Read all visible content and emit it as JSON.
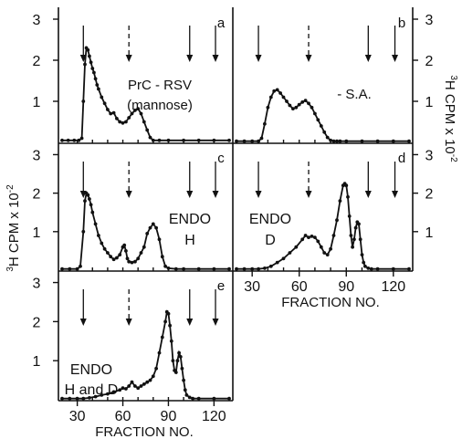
{
  "chart_data": [
    {
      "id": "a",
      "type": "line",
      "panel_letter": "a",
      "label": "PrC - RSV",
      "label2": "(mannose)",
      "xlim": [
        20,
        130
      ],
      "ylim": [
        0,
        3.2
      ],
      "yticks": [
        "1",
        "2",
        "3"
      ],
      "xticks": [],
      "marker_ticks": [
        30,
        40,
        50,
        60,
        70,
        80,
        90,
        100,
        110,
        120
      ],
      "arrows": [
        {
          "x": 34,
          "dashed": false
        },
        {
          "x": 64,
          "dashed": true
        },
        {
          "x": 104,
          "dashed": false
        },
        {
          "x": 121,
          "dashed": false
        }
      ],
      "x": [
        20,
        24,
        28,
        31,
        33,
        34,
        35,
        36,
        37,
        38,
        39,
        40,
        41,
        42,
        43,
        44,
        46,
        48,
        50,
        52,
        54,
        56,
        58,
        60,
        62,
        64,
        66,
        68,
        70,
        72,
        74,
        76,
        78,
        80,
        84,
        90,
        100,
        110,
        120,
        130
      ],
      "y": [
        0.05,
        0.05,
        0.05,
        0.05,
        0.1,
        1.0,
        1.9,
        2.3,
        2.25,
        2.1,
        1.95,
        1.8,
        1.7,
        1.55,
        1.4,
        1.3,
        1.1,
        0.95,
        0.8,
        0.7,
        0.72,
        0.58,
        0.5,
        0.47,
        0.5,
        0.6,
        0.7,
        0.78,
        0.82,
        0.7,
        0.5,
        0.3,
        0.12,
        0.05,
        0.05,
        0.05,
        0.05,
        0.05,
        0.05,
        0.05
      ]
    },
    {
      "id": "b",
      "type": "line",
      "panel_letter": "b",
      "label": "- S.A.",
      "label2": "",
      "xlim": [
        20,
        130
      ],
      "ylim": [
        0,
        3.2
      ],
      "yticks": [
        "1",
        "2",
        "3"
      ],
      "xticks": [],
      "marker_ticks": [
        30,
        40,
        50,
        60,
        70,
        80,
        90,
        100,
        110,
        120
      ],
      "arrows": [
        {
          "x": 34,
          "dashed": false
        },
        {
          "x": 66,
          "dashed": true
        },
        {
          "x": 104,
          "dashed": false
        },
        {
          "x": 121,
          "dashed": false
        }
      ],
      "x": [
        20,
        25,
        30,
        34,
        36,
        38,
        40,
        42,
        44,
        46,
        48,
        50,
        52,
        54,
        56,
        58,
        60,
        62,
        64,
        66,
        68,
        70,
        72,
        74,
        76,
        78,
        80,
        82,
        84,
        86,
        90,
        100,
        110,
        120,
        130
      ],
      "y": [
        0.03,
        0.03,
        0.03,
        0.03,
        0.1,
        0.45,
        0.85,
        1.1,
        1.25,
        1.28,
        1.2,
        1.1,
        1.0,
        0.9,
        0.82,
        0.85,
        0.92,
        0.98,
        1.02,
        0.95,
        0.85,
        0.7,
        0.55,
        0.4,
        0.25,
        0.12,
        0.05,
        0.03,
        0.03,
        0.03,
        0.03,
        0.03,
        0.03,
        0.03,
        0.03
      ]
    },
    {
      "id": "c",
      "type": "line",
      "panel_letter": "c",
      "label": "ENDO",
      "label2": "H",
      "xlim": [
        20,
        130
      ],
      "ylim": [
        0,
        3.2
      ],
      "yticks": [
        "1",
        "2",
        "3"
      ],
      "xticks": [],
      "marker_ticks": [
        30,
        40,
        50,
        60,
        70,
        80,
        90,
        100,
        110,
        120
      ],
      "arrows": [
        {
          "x": 34,
          "dashed": false
        },
        {
          "x": 64,
          "dashed": true
        },
        {
          "x": 104,
          "dashed": false
        },
        {
          "x": 121,
          "dashed": false
        }
      ],
      "x": [
        20,
        25,
        30,
        32,
        34,
        35,
        36,
        37,
        38,
        39,
        40,
        42,
        44,
        46,
        48,
        50,
        52,
        54,
        56,
        58,
        60,
        61,
        62,
        63,
        64,
        66,
        68,
        70,
        72,
        74,
        76,
        78,
        80,
        82,
        84,
        86,
        88,
        90,
        95,
        100,
        110,
        120,
        130
      ],
      "y": [
        0.03,
        0.03,
        0.03,
        0.1,
        1.0,
        1.8,
        2.0,
        1.95,
        1.85,
        1.7,
        1.5,
        1.2,
        0.9,
        0.7,
        0.55,
        0.45,
        0.35,
        0.28,
        0.32,
        0.4,
        0.6,
        0.65,
        0.5,
        0.3,
        0.22,
        0.2,
        0.22,
        0.3,
        0.45,
        0.6,
        0.95,
        1.1,
        1.2,
        1.1,
        0.8,
        0.35,
        0.1,
        0.05,
        0.03,
        0.03,
        0.03,
        0.03,
        0.03
      ]
    },
    {
      "id": "d",
      "type": "line",
      "panel_letter": "d",
      "label": "ENDO",
      "label2": "D",
      "xlim": [
        20,
        130
      ],
      "ylim": [
        0,
        3.2
      ],
      "yticks": [
        "1",
        "2",
        "3"
      ],
      "xticks": [
        "30",
        "60",
        "90",
        "120"
      ],
      "marker_ticks": [
        30,
        40,
        50,
        60,
        70,
        80,
        90,
        100,
        110,
        120
      ],
      "arrows": [
        {
          "x": 34,
          "dashed": false
        },
        {
          "x": 66,
          "dashed": true
        },
        {
          "x": 104,
          "dashed": false
        },
        {
          "x": 121,
          "dashed": false
        }
      ],
      "x": [
        20,
        25,
        30,
        34,
        38,
        42,
        46,
        50,
        54,
        58,
        62,
        64,
        66,
        68,
        70,
        72,
        74,
        76,
        78,
        80,
        82,
        84,
        86,
        88,
        89,
        90,
        91,
        92,
        93,
        94,
        95,
        96,
        97,
        98,
        99,
        100,
        101,
        102,
        104,
        106,
        110,
        120,
        130
      ],
      "y": [
        0.03,
        0.03,
        0.03,
        0.03,
        0.05,
        0.1,
        0.2,
        0.3,
        0.45,
        0.6,
        0.8,
        0.9,
        0.85,
        0.88,
        0.85,
        0.75,
        0.6,
        0.45,
        0.4,
        0.55,
        0.9,
        1.3,
        1.8,
        2.2,
        2.25,
        2.2,
        1.9,
        1.4,
        0.9,
        0.6,
        0.8,
        1.1,
        1.25,
        1.2,
        0.8,
        0.4,
        0.2,
        0.1,
        0.05,
        0.03,
        0.03,
        0.03,
        0.03
      ]
    },
    {
      "id": "e",
      "type": "line",
      "panel_letter": "e",
      "label": "ENDO",
      "label2": "H and D",
      "xlim": [
        20,
        130
      ],
      "ylim": [
        0,
        3.2
      ],
      "yticks": [
        "1",
        "2",
        "3"
      ],
      "xticks": [
        "30",
        "60",
        "90",
        "120"
      ],
      "marker_ticks": [
        30,
        40,
        50,
        60,
        70,
        80,
        90,
        100,
        110,
        120
      ],
      "arrows": [
        {
          "x": 34,
          "dashed": false
        },
        {
          "x": 64,
          "dashed": true
        },
        {
          "x": 104,
          "dashed": false
        },
        {
          "x": 121,
          "dashed": false
        }
      ],
      "x": [
        20,
        25,
        30,
        34,
        38,
        42,
        46,
        50,
        54,
        58,
        60,
        62,
        64,
        66,
        68,
        70,
        72,
        74,
        76,
        78,
        80,
        82,
        84,
        86,
        88,
        89,
        90,
        91,
        92,
        93,
        94,
        95,
        96,
        97,
        98,
        99,
        100,
        101,
        102,
        104,
        106,
        110,
        120,
        130
      ],
      "y": [
        0.03,
        0.03,
        0.03,
        0.03,
        0.05,
        0.08,
        0.12,
        0.15,
        0.2,
        0.25,
        0.3,
        0.28,
        0.35,
        0.45,
        0.35,
        0.3,
        0.35,
        0.4,
        0.45,
        0.5,
        0.6,
        0.8,
        1.2,
        1.6,
        2.0,
        2.25,
        2.2,
        1.9,
        1.5,
        1.0,
        0.75,
        0.7,
        1.0,
        1.2,
        1.1,
        0.8,
        0.5,
        0.25,
        0.12,
        0.06,
        0.03,
        0.03,
        0.03,
        0.03
      ]
    }
  ],
  "y_axis_title_left": "3H CPM x 10-2",
  "y_axis_title_right": "3H CPM x 10-2",
  "x_axis_title": "FRACTION NO."
}
